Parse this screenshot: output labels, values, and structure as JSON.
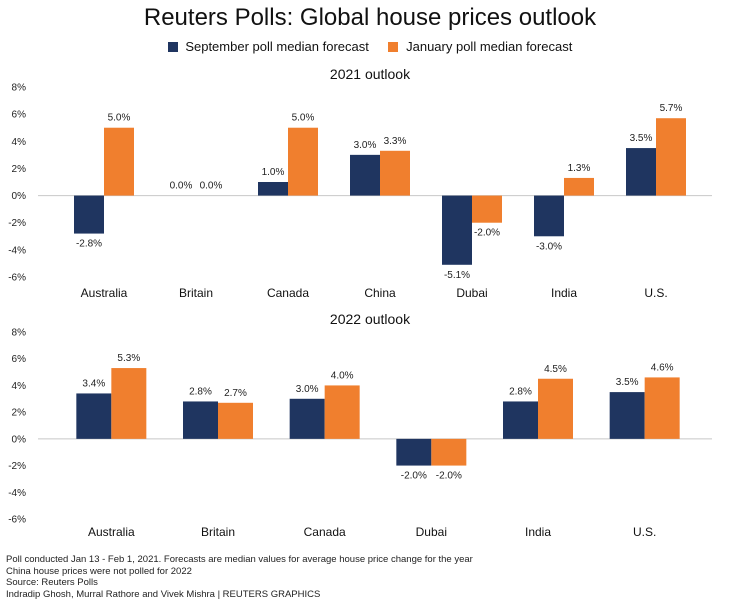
{
  "title": "Reuters Polls: Global house prices outlook",
  "legend": [
    {
      "label": "September poll median forecast",
      "color": "#1f3560"
    },
    {
      "label": "January poll median forecast",
      "color": "#f07f2e"
    }
  ],
  "chart_data": [
    {
      "type": "bar",
      "title": "2021 outlook",
      "categories": [
        "Australia",
        "Britain",
        "Canada",
        "China",
        "Dubai",
        "India",
        "U.S."
      ],
      "series": [
        {
          "name": "September poll median forecast",
          "values": [
            -2.8,
            0.0,
            1.0,
            3.0,
            -5.1,
            -3.0,
            3.5
          ],
          "labels": [
            "-2.8%",
            "0.0%",
            "1.0%",
            "3.0%",
            "-5.1%",
            "-3.0%",
            "3.5%"
          ]
        },
        {
          "name": "January poll median forecast",
          "values": [
            5.0,
            0.0,
            5.0,
            3.3,
            -2.0,
            1.3,
            5.7
          ],
          "labels": [
            "5.0%",
            "0.0%",
            "5.0%",
            "3.3%",
            "-2.0%",
            "1.3%",
            "5.7%"
          ]
        }
      ],
      "ylim": [
        -6,
        8
      ],
      "yticks": [
        "-6%",
        "-4%",
        "-2%",
        "0%",
        "2%",
        "4%",
        "6%",
        "8%"
      ],
      "ytick_values": [
        -6,
        -4,
        -2,
        0,
        2,
        4,
        6,
        8
      ]
    },
    {
      "type": "bar",
      "title": "2022 outlook",
      "categories": [
        "Australia",
        "Britain",
        "Canada",
        "Dubai",
        "India",
        "U.S."
      ],
      "series": [
        {
          "name": "September poll median forecast",
          "values": [
            3.4,
            2.8,
            3.0,
            -2.0,
            2.8,
            3.5
          ],
          "labels": [
            "3.4%",
            "2.8%",
            "3.0%",
            "-2.0%",
            "2.8%",
            "3.5%"
          ]
        },
        {
          "name": "January poll median forecast",
          "values": [
            5.3,
            2.7,
            4.0,
            -2.0,
            4.5,
            4.6
          ],
          "labels": [
            "5.3%",
            "2.7%",
            "4.0%",
            "-2.0%",
            "4.5%",
            "4.6%"
          ]
        }
      ],
      "ylim": [
        -6,
        8
      ],
      "yticks": [
        "-6%",
        "-4%",
        "-2%",
        "0%",
        "2%",
        "4%",
        "6%",
        "8%"
      ],
      "ytick_values": [
        -6,
        -4,
        -2,
        0,
        2,
        4,
        6,
        8
      ]
    }
  ],
  "footer": [
    "Poll conducted Jan 13 - Feb 1, 2021. Forecasts are median values for average house price change for the year",
    "China house prices were not polled for 2022",
    "Source: Reuters Polls",
    "Indradip Ghosh, Murral Rathore and Vivek Mishra | REUTERS GRAPHICS"
  ]
}
